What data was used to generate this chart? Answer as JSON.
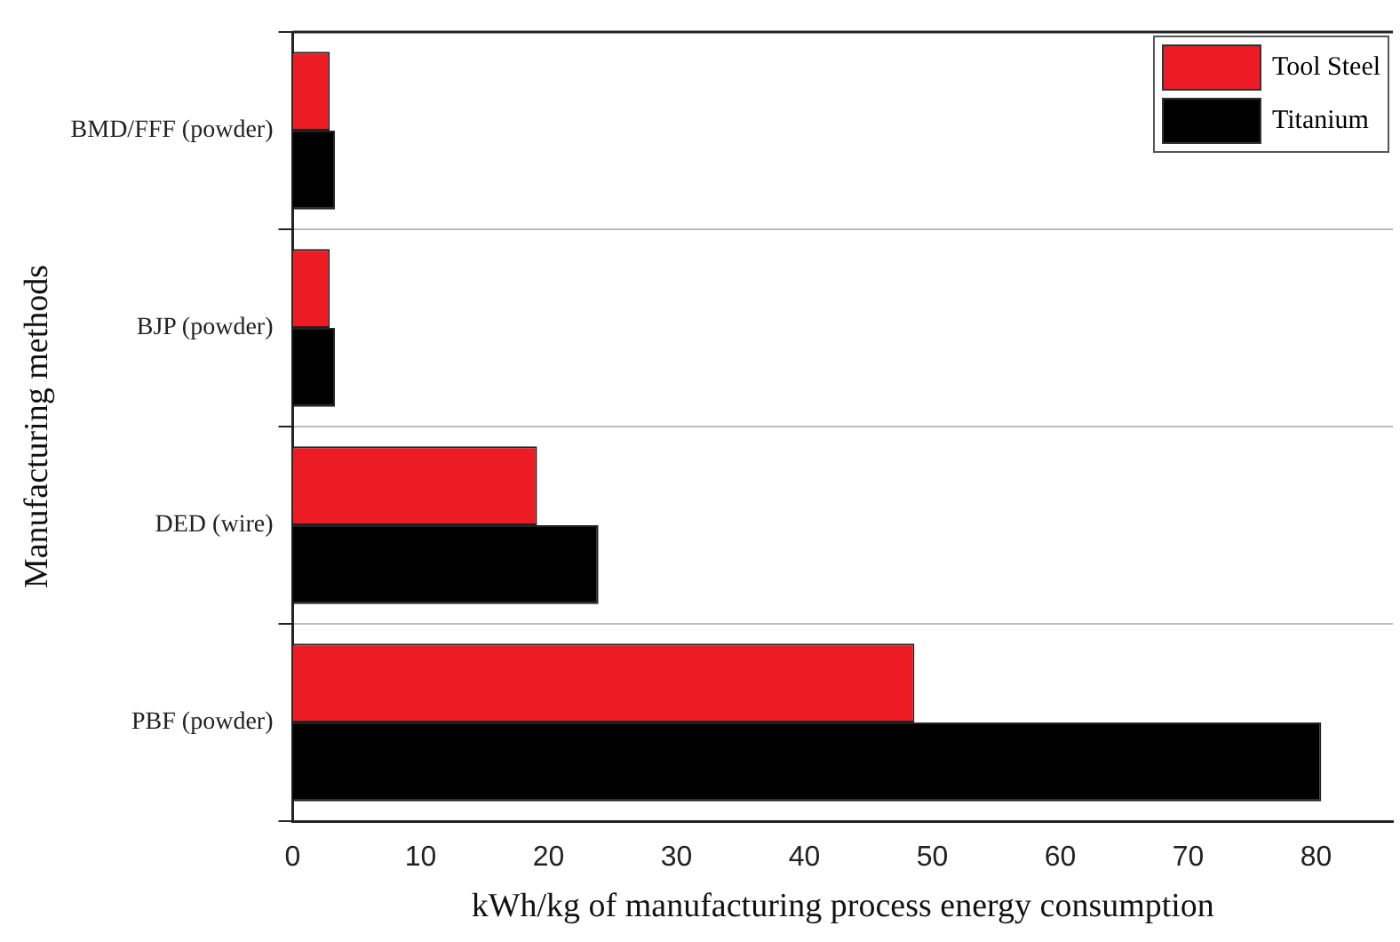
{
  "chart_data": {
    "type": "bar",
    "orientation": "horizontal",
    "xlabel": "kWh/kg of manufacturing process energy consumption",
    "ylabel": "Manufacturing methods",
    "categories": [
      "BMD/FFF (powder)",
      "BJP (powder)",
      "DED (wire)",
      "PBF (powder)"
    ],
    "series": [
      {
        "name": "Tool Steel",
        "color": "#ed1c24",
        "values": [
          2.9,
          2.9,
          19.1,
          48.6
        ]
      },
      {
        "name": "Titanium",
        "color": "#000000",
        "values": [
          3.3,
          3.3,
          23.9,
          80.4
        ]
      }
    ],
    "xlim": [
      0,
      86
    ],
    "xticks": [
      0,
      10,
      20,
      30,
      40,
      50,
      60,
      70,
      80
    ],
    "grid": "y",
    "legend": "top right"
  }
}
